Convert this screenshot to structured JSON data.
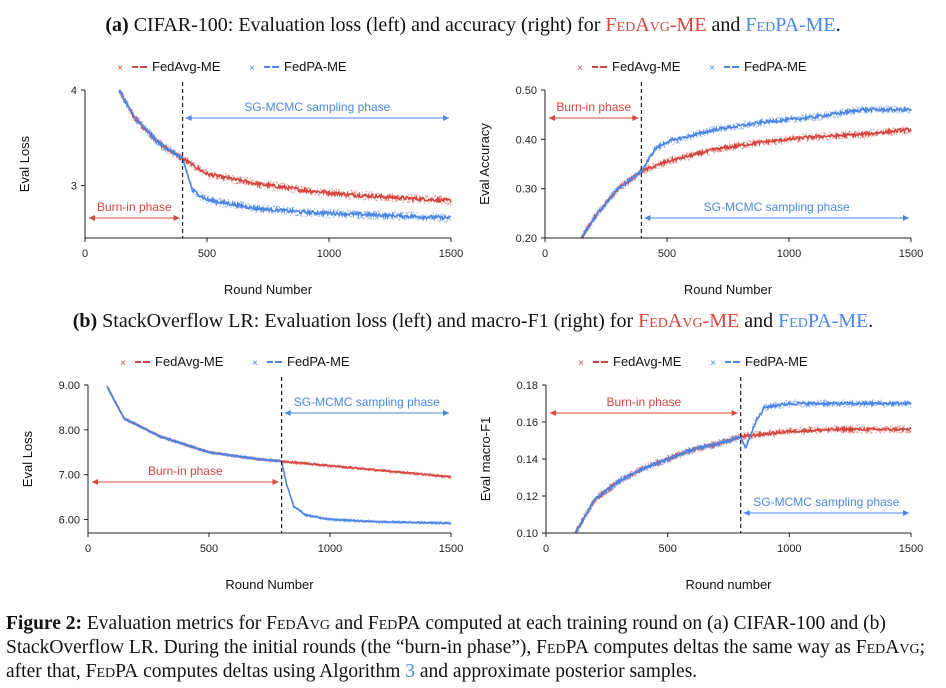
{
  "captions": {
    "a": {
      "label": "(a)",
      "text1": "CIFAR-100: Evaluation loss (left) and accuracy (right) for",
      "m1": "FedAvg-ME",
      "and": "and",
      "m2": "FedPA-ME",
      "end": "."
    },
    "b": {
      "label": "(b)",
      "text1": "StackOverflow LR: Evaluation loss (left) and macro-F1 (right) for",
      "m1": "FedAvg-ME",
      "and": "and",
      "m2": "FedPA-ME",
      "end": "."
    }
  },
  "figure_caption": {
    "label": "Figure 2:",
    "p1": "Evaluation metrics for",
    "fedavg": "FedAvg",
    "and": "and",
    "fedpa": "FedPA",
    "p2": "computed at each training round on (a) CIFAR-100 and (b) StackOverflow LR. During the initial rounds (the “burn-in phase”),",
    "p3": "computes deltas the same way as",
    "p4": "; after that,",
    "p5": "computes deltas using Algorithm",
    "alg": "3",
    "p6": "and approximate posterior samples."
  },
  "colors": {
    "fedavg": "#d6453d",
    "fedpa": "#4a86e8"
  },
  "chart_data": [
    {
      "id": "cifar-loss",
      "type": "line",
      "xlabel": "Round Number",
      "ylabel": "Eval Loss",
      "xlim": [
        0,
        1500
      ],
      "ylim": [
        2.45,
        4.0
      ],
      "xticks": [
        0,
        500,
        1000,
        1500
      ],
      "yticks": [
        3,
        4
      ],
      "ytick_labels": [
        "3",
        "4"
      ],
      "x_start": 140,
      "burnin_x": 400,
      "burnin_label": "Burn-in phase",
      "sampling_label": "SG-MCMC sampling phase",
      "series": [
        {
          "name": "FedAvg-ME",
          "x": [
            140,
            200,
            300,
            400,
            500,
            700,
            900,
            1100,
            1300,
            1500
          ],
          "values": [
            4.0,
            3.72,
            3.45,
            3.28,
            3.12,
            3.02,
            2.95,
            2.9,
            2.87,
            2.84
          ]
        },
        {
          "name": "FedPA-ME",
          "x": [
            140,
            200,
            300,
            400,
            440,
            500,
            700,
            900,
            1100,
            1300,
            1500
          ],
          "values": [
            4.0,
            3.72,
            3.45,
            3.28,
            2.95,
            2.85,
            2.76,
            2.72,
            2.7,
            2.68,
            2.66
          ]
        }
      ],
      "noise": 0.035
    },
    {
      "id": "cifar-acc",
      "type": "line",
      "xlabel": "Round Number",
      "ylabel": "Eval Accuracy",
      "xlim": [
        0,
        1500
      ],
      "ylim": [
        0.2,
        0.5
      ],
      "xticks": [
        0,
        500,
        1000,
        1500
      ],
      "yticks": [
        0.2,
        0.3,
        0.4,
        0.5
      ],
      "ytick_labels": [
        "0.20",
        "0.30",
        "0.40",
        "0.50"
      ],
      "x_start": 150,
      "burnin_x": 395,
      "burnin_label": "Burn-in phase",
      "sampling_label": "SG-MCMC sampling phase",
      "series": [
        {
          "name": "FedAvg-ME",
          "x": [
            150,
            200,
            300,
            395,
            500,
            700,
            900,
            1100,
            1300,
            1500
          ],
          "values": [
            0.2,
            0.24,
            0.3,
            0.335,
            0.355,
            0.38,
            0.395,
            0.405,
            0.41,
            0.42
          ]
        },
        {
          "name": "FedPA-ME",
          "x": [
            150,
            200,
            300,
            395,
            450,
            500,
            700,
            900,
            1100,
            1300,
            1500
          ],
          "values": [
            0.2,
            0.24,
            0.3,
            0.335,
            0.38,
            0.395,
            0.42,
            0.435,
            0.445,
            0.46,
            0.46
          ]
        }
      ],
      "noise": 0.006
    },
    {
      "id": "so-loss",
      "type": "line",
      "xlabel": "Round Number",
      "ylabel": "Eval Loss",
      "xlim": [
        0,
        1500
      ],
      "ylim": [
        5.7,
        9.0
      ],
      "xticks": [
        0,
        500,
        1000,
        1500
      ],
      "yticks": [
        6,
        7,
        8,
        9
      ],
      "ytick_labels": [
        "6.00",
        "7.00",
        "8.00",
        "9.00"
      ],
      "x_start": 80,
      "burnin_x": 800,
      "burnin_label": "Burn-in phase",
      "sampling_label": "SG-MCMC sampling phase",
      "series": [
        {
          "name": "FedAvg-ME",
          "x": [
            80,
            150,
            300,
            500,
            700,
            800,
            1000,
            1200,
            1400,
            1500
          ],
          "values": [
            8.95,
            8.25,
            7.85,
            7.5,
            7.35,
            7.3,
            7.2,
            7.1,
            7.0,
            6.95
          ]
        },
        {
          "name": "FedPA-ME",
          "x": [
            80,
            150,
            300,
            500,
            700,
            800,
            820,
            850,
            900,
            1000,
            1200,
            1500
          ],
          "values": [
            8.95,
            8.25,
            7.85,
            7.5,
            7.35,
            7.3,
            6.8,
            6.3,
            6.1,
            6.0,
            5.95,
            5.92
          ]
        }
      ],
      "noise": 0.025
    },
    {
      "id": "so-f1",
      "type": "line",
      "xlabel": "Round number",
      "ylabel": "Eval macro-F1",
      "xlim": [
        0,
        1500
      ],
      "ylim": [
        0.1,
        0.18
      ],
      "xticks": [
        0,
        500,
        1000,
        1500
      ],
      "yticks": [
        0.1,
        0.12,
        0.14,
        0.16,
        0.18
      ],
      "ytick_labels": [
        "0.10",
        "0.12",
        "0.14",
        "0.16",
        "0.18"
      ],
      "x_start": 120,
      "burnin_x": 800,
      "burnin_label": "Burn-in phase",
      "sampling_label": "SG-MCMC sampling phase",
      "series": [
        {
          "name": "FedAvg-ME",
          "x": [
            120,
            200,
            300,
            400,
            500,
            600,
            700,
            800,
            1000,
            1200,
            1500
          ],
          "values": [
            0.1,
            0.118,
            0.128,
            0.135,
            0.14,
            0.145,
            0.148,
            0.152,
            0.155,
            0.156,
            0.156
          ]
        },
        {
          "name": "FedPA-ME",
          "x": [
            120,
            200,
            300,
            400,
            500,
            600,
            700,
            800,
            820,
            860,
            900,
            1000,
            1200,
            1500
          ],
          "values": [
            0.1,
            0.118,
            0.128,
            0.135,
            0.14,
            0.145,
            0.148,
            0.152,
            0.146,
            0.16,
            0.168,
            0.17,
            0.17,
            0.17
          ]
        }
      ],
      "noise": 0.0015
    }
  ]
}
